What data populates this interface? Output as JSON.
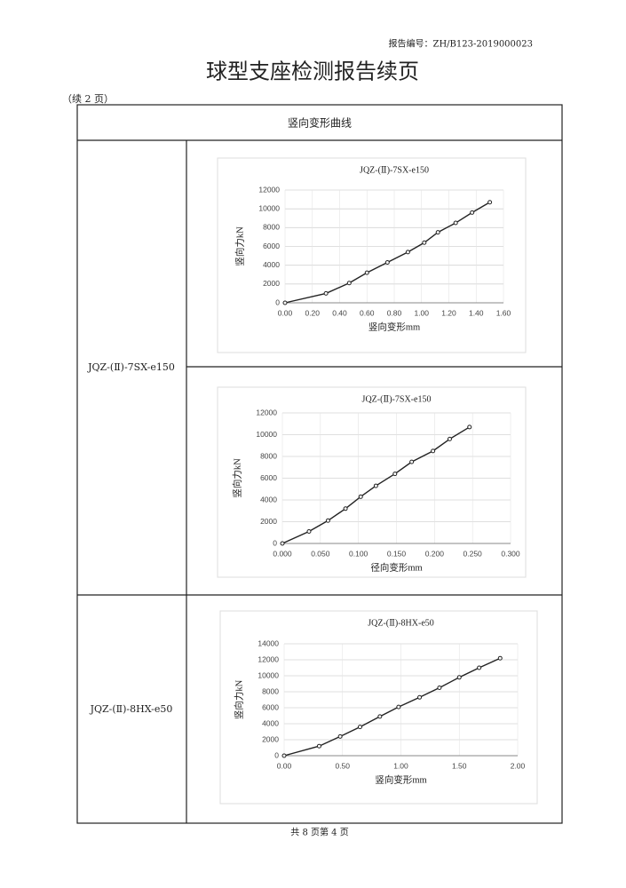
{
  "header": {
    "report_no": "报告编号：ZH/B123-2019000023",
    "title": "球型支座检测报告续页",
    "continued": "（续 2 页）"
  },
  "table": {
    "heading": "竖向变形曲线",
    "rows": [
      "JQZ-(Ⅱ)-7SX-e150",
      "JQZ-(Ⅱ)-8HX-e50"
    ]
  },
  "footer": "共 8 页第 4 页",
  "chart_data": [
    {
      "type": "line",
      "title": "JQZ-(Ⅱ)-7SX-e150",
      "x_label": "竖向变形mm",
      "y_label": "竖向力kN",
      "color": "#222222",
      "grid": true,
      "x": [
        0,
        0.3,
        0.47,
        0.6,
        0.75,
        0.9,
        1.02,
        1.12,
        1.25,
        1.37,
        1.5
      ],
      "values": [
        0,
        1000,
        2100,
        3200,
        4300,
        5400,
        6400,
        7500,
        8500,
        9600,
        10700
      ],
      "xlim": [
        0,
        1.6
      ],
      "ylim": [
        0,
        12000
      ],
      "xticks": [
        {
          "value": 0,
          "label": "0.00"
        },
        {
          "value": 0.2,
          "label": "0.20"
        },
        {
          "value": 0.4,
          "label": "0.40"
        },
        {
          "value": 0.6,
          "label": "0.60"
        },
        {
          "value": 0.8,
          "label": "0.80"
        },
        {
          "value": 1.0,
          "label": "1.00"
        },
        {
          "value": 1.2,
          "label": "1.20"
        },
        {
          "value": 1.4,
          "label": "1.40"
        },
        {
          "value": 1.6,
          "label": "1.60"
        }
      ],
      "yticks": [
        0,
        2000,
        4000,
        6000,
        8000,
        10000,
        12000
      ]
    },
    {
      "type": "line",
      "title": "JQZ-(Ⅱ)-7SX-e150",
      "x_label": "径向变形mm",
      "y_label": "竖向力kN",
      "color": "#222222",
      "grid": true,
      "x": [
        0,
        0.035,
        0.06,
        0.083,
        0.103,
        0.123,
        0.148,
        0.17,
        0.198,
        0.22,
        0.246
      ],
      "values": [
        0,
        1100,
        2100,
        3200,
        4300,
        5300,
        6400,
        7500,
        8500,
        9600,
        10700
      ],
      "xlim": [
        0,
        0.3
      ],
      "ylim": [
        0,
        12000
      ],
      "xticks": [
        {
          "value": 0,
          "label": "0.000"
        },
        {
          "value": 0.05,
          "label": "0.050"
        },
        {
          "value": 0.1,
          "label": "0.100"
        },
        {
          "value": 0.15,
          "label": "0.150"
        },
        {
          "value": 0.2,
          "label": "0.200"
        },
        {
          "value": 0.25,
          "label": "0.250"
        },
        {
          "value": 0.3,
          "label": "0.300"
        }
      ],
      "yticks": [
        0,
        2000,
        4000,
        6000,
        8000,
        10000,
        12000
      ]
    },
    {
      "type": "line",
      "title": "JQZ-(Ⅱ)-8HX-e50",
      "x_label": "竖向变形mm",
      "y_label": "竖向力kN",
      "color": "#222222",
      "grid": true,
      "x": [
        0,
        0.3,
        0.48,
        0.65,
        0.82,
        0.98,
        1.16,
        1.33,
        1.5,
        1.67,
        1.85
      ],
      "values": [
        0,
        1200,
        2400,
        3600,
        4900,
        6100,
        7300,
        8500,
        9800,
        11000,
        12200
      ],
      "xlim": [
        0,
        2
      ],
      "ylim": [
        0,
        14000
      ],
      "xticks": [
        {
          "value": 0,
          "label": "0.00"
        },
        {
          "value": 0.5,
          "label": "0.50"
        },
        {
          "value": 1,
          "label": "1.00"
        },
        {
          "value": 1.5,
          "label": "1.50"
        },
        {
          "value": 2,
          "label": "2.00"
        }
      ],
      "yticks": [
        0,
        2000,
        4000,
        6000,
        8000,
        10000,
        12000,
        14000
      ]
    }
  ]
}
